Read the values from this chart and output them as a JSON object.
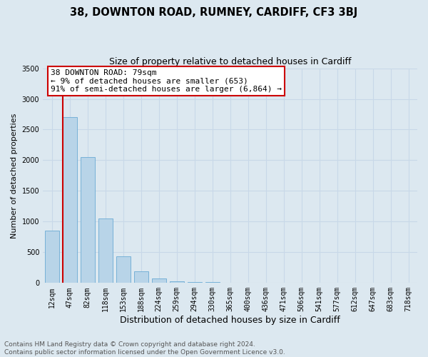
{
  "title": "38, DOWNTON ROAD, RUMNEY, CARDIFF, CF3 3BJ",
  "subtitle": "Size of property relative to detached houses in Cardiff",
  "xlabel": "Distribution of detached houses by size in Cardiff",
  "ylabel": "Number of detached properties",
  "categories": [
    "12sqm",
    "47sqm",
    "82sqm",
    "118sqm",
    "153sqm",
    "188sqm",
    "224sqm",
    "259sqm",
    "294sqm",
    "330sqm",
    "365sqm",
    "400sqm",
    "436sqm",
    "471sqm",
    "506sqm",
    "541sqm",
    "577sqm",
    "612sqm",
    "647sqm",
    "683sqm",
    "718sqm"
  ],
  "values": [
    850,
    2700,
    2050,
    1050,
    430,
    190,
    70,
    30,
    20,
    10,
    8,
    5,
    4,
    3,
    3,
    2,
    2,
    2,
    1,
    1,
    1
  ],
  "bar_color": "#b8d4e8",
  "bar_edge_color": "#6aaad4",
  "annotation_text": "38 DOWNTON ROAD: 79sqm\n← 9% of detached houses are smaller (653)\n91% of semi-detached houses are larger (6,864) →",
  "annotation_box_color": "#ffffff",
  "annotation_box_edgecolor": "#cc0000",
  "vline_color": "#cc0000",
  "ylim": [
    0,
    3500
  ],
  "yticks": [
    0,
    500,
    1000,
    1500,
    2000,
    2500,
    3000,
    3500
  ],
  "grid_color": "#c8d8e8",
  "bg_color": "#dce8f0",
  "footnote": "Contains HM Land Registry data © Crown copyright and database right 2024.\nContains public sector information licensed under the Open Government Licence v3.0.",
  "title_fontsize": 10.5,
  "subtitle_fontsize": 9,
  "xlabel_fontsize": 9,
  "ylabel_fontsize": 8,
  "tick_fontsize": 7,
  "annotation_fontsize": 8,
  "footnote_fontsize": 6.5
}
